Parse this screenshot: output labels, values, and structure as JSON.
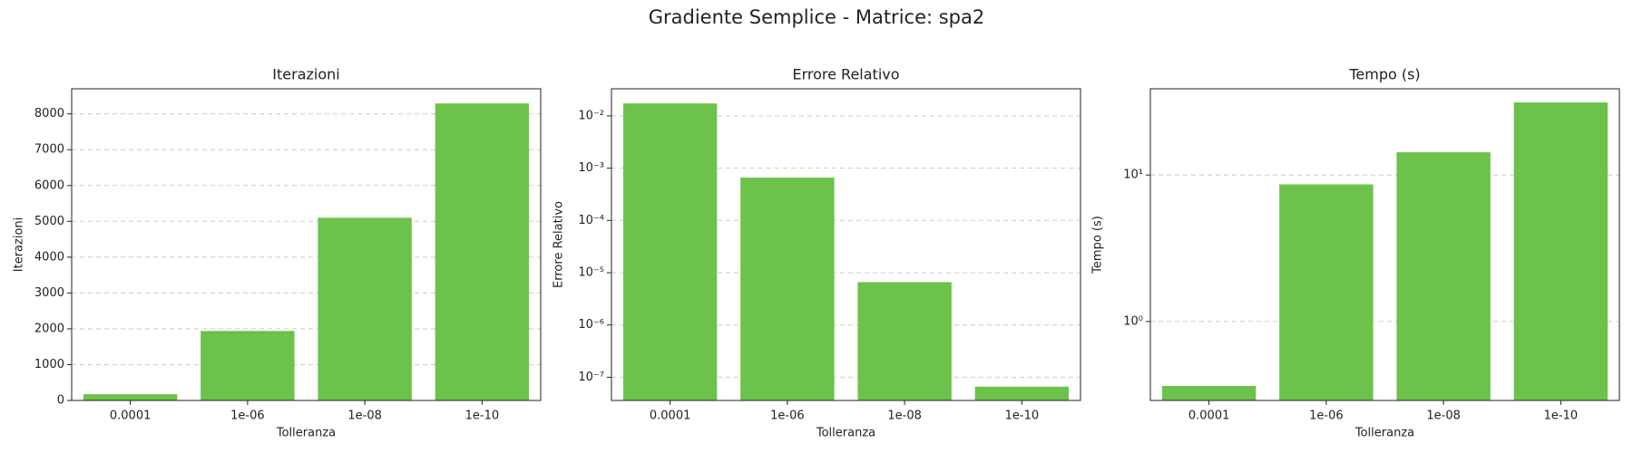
{
  "title": "Gradiente Semplice - Matrice: spa2",
  "chart_data": [
    {
      "type": "bar",
      "title": "Iterazioni",
      "xlabel": "Tolleranza",
      "ylabel": "Iterazioni",
      "categories": [
        "0.0001",
        "1e-06",
        "1e-08",
        "1e-10"
      ],
      "values": [
        175,
        1940,
        5100,
        8290
      ],
      "color": "#6cc24a",
      "yscale": "linear",
      "grid": true,
      "ylim": [
        0,
        8700
      ],
      "yticks": [
        0,
        1000,
        2000,
        3000,
        4000,
        5000,
        6000,
        7000,
        8000
      ]
    },
    {
      "type": "bar",
      "title": "Errore Relativo",
      "xlabel": "Tolleranza",
      "ylabel": "Errore Relativo",
      "categories": [
        "0.0001",
        "1e-06",
        "1e-08",
        "1e-10"
      ],
      "values": [
        0.0173,
        0.00066,
        6.6e-06,
        6.6e-08
      ],
      "color": "#6cc24a",
      "yscale": "log",
      "grid": true,
      "ylim": [
        3.6e-08,
        0.033
      ],
      "yticks": [
        {
          "value": 1e-07,
          "label": "10⁻⁷"
        },
        {
          "value": 1e-06,
          "label": "10⁻⁶"
        },
        {
          "value": 1e-05,
          "label": "10⁻⁵"
        },
        {
          "value": 0.0001,
          "label": "10⁻⁴"
        },
        {
          "value": 0.001,
          "label": "10⁻³"
        },
        {
          "value": 0.01,
          "label": "10⁻²"
        }
      ]
    },
    {
      "type": "bar",
      "title": "Tempo (s)",
      "xlabel": "Tolleranza",
      "ylabel": "Tempo (s)",
      "categories": [
        "0.0001",
        "1e-06",
        "1e-08",
        "1e-10"
      ],
      "values": [
        0.363,
        8.63,
        14.3,
        31.3
      ],
      "color": "#6cc24a",
      "yscale": "log",
      "grid": true,
      "ylim": [
        0.289,
        38.8
      ],
      "yticks": [
        {
          "value": 1,
          "label": "10⁰"
        },
        {
          "value": 10,
          "label": "10¹"
        }
      ]
    }
  ]
}
